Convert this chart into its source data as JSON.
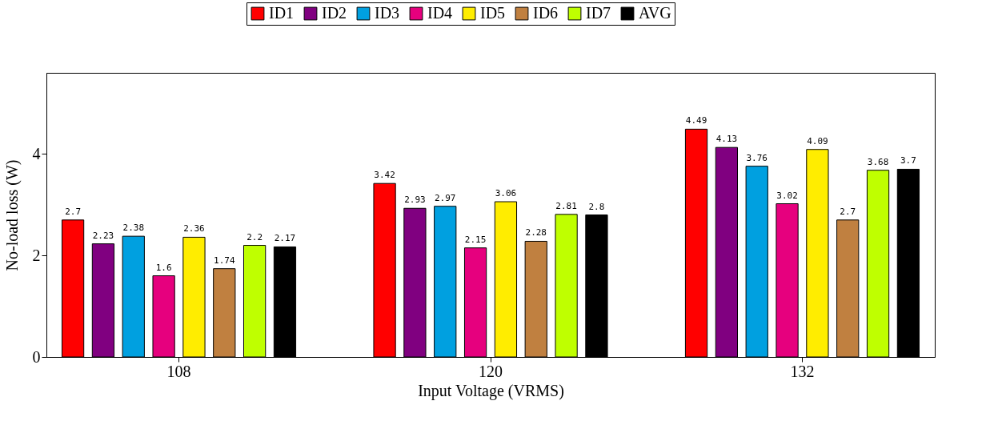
{
  "chart_data": {
    "type": "bar",
    "xlabel": "Input Voltage (VRMS)",
    "ylabel": "No-load loss (W)",
    "categories": [
      "108",
      "120",
      "132"
    ],
    "series": [
      {
        "name": "ID1",
        "color": "#ff0000",
        "values": [
          2.7,
          3.42,
          4.49
        ]
      },
      {
        "name": "ID2",
        "color": "#800080",
        "values": [
          2.23,
          2.93,
          4.13
        ]
      },
      {
        "name": "ID3",
        "color": "#00a0e0",
        "values": [
          2.38,
          2.97,
          3.76
        ]
      },
      {
        "name": "ID4",
        "color": "#e6007e",
        "values": [
          1.6,
          2.15,
          3.02
        ]
      },
      {
        "name": "ID5",
        "color": "#ffed00",
        "values": [
          2.36,
          3.06,
          4.09
        ]
      },
      {
        "name": "ID6",
        "color": "#c08040",
        "values": [
          1.74,
          2.28,
          2.7
        ]
      },
      {
        "name": "ID7",
        "color": "#bfff00",
        "values": [
          2.2,
          2.81,
          3.68
        ]
      },
      {
        "name": "AVG",
        "color": "#000000",
        "values": [
          2.17,
          2.8,
          3.7
        ]
      }
    ],
    "ylim": [
      0,
      5.6
    ],
    "yticks": [
      0,
      2,
      4
    ],
    "grid": false,
    "legend": "top",
    "data_labels": true
  }
}
